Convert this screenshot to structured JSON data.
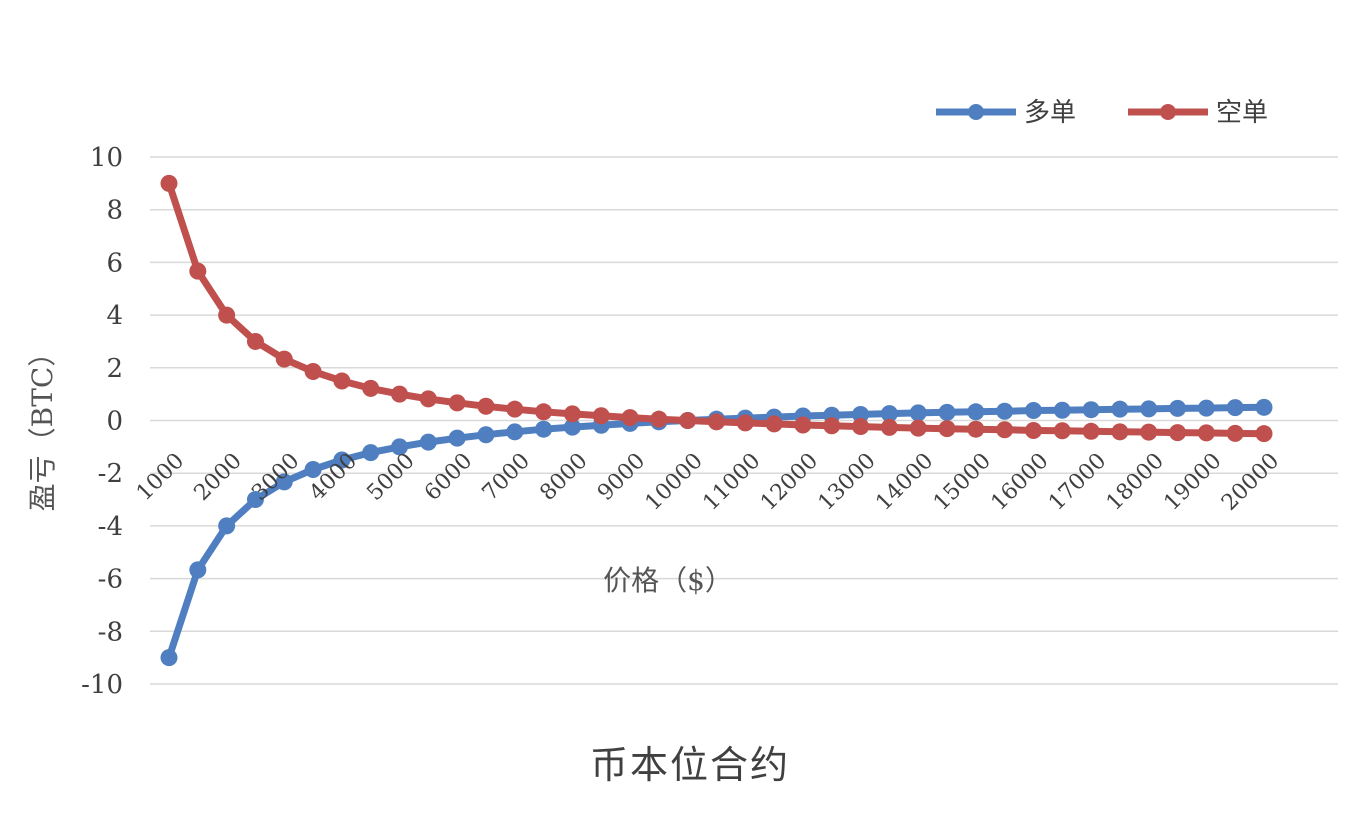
{
  "chart_data": {
    "type": "line",
    "title": "币本位合约",
    "xlabel": "价格（$）",
    "ylabel": "盈亏（BTC）",
    "ylim": [
      -10,
      10
    ],
    "yticks": [
      -10,
      -8,
      -6,
      -4,
      -2,
      0,
      2,
      4,
      6,
      8,
      10
    ],
    "grid": true,
    "legend_position": "top-right",
    "x": [
      1000,
      1500,
      2000,
      2500,
      3000,
      3500,
      4000,
      4500,
      5000,
      5500,
      6000,
      6500,
      7000,
      7500,
      8000,
      8500,
      9000,
      9500,
      10000,
      10500,
      11000,
      11500,
      12000,
      12500,
      13000,
      13500,
      14000,
      14500,
      15000,
      15500,
      16000,
      16500,
      17000,
      17500,
      18000,
      18500,
      19000,
      19500,
      20000
    ],
    "x_tick_labels": [
      "1000",
      "2000",
      "3000",
      "4000",
      "5000",
      "6000",
      "7000",
      "8000",
      "9000",
      "10000",
      "11000",
      "12000",
      "13000",
      "14000",
      "15000",
      "16000",
      "17000",
      "18000",
      "19000",
      "20000"
    ],
    "series": [
      {
        "name": "多单",
        "color": "#4f7fc0",
        "values": [
          -9.0,
          -5.67,
          -4.0,
          -3.0,
          -2.33,
          -1.86,
          -1.5,
          -1.22,
          -1.0,
          -0.82,
          -0.67,
          -0.54,
          -0.43,
          -0.33,
          -0.25,
          -0.18,
          -0.11,
          -0.05,
          0.0,
          0.05,
          0.09,
          0.13,
          0.17,
          0.2,
          0.23,
          0.26,
          0.29,
          0.31,
          0.33,
          0.35,
          0.38,
          0.39,
          0.41,
          0.43,
          0.44,
          0.46,
          0.47,
          0.49,
          0.5
        ]
      },
      {
        "name": "空单",
        "color": "#c0504d",
        "values": [
          9.0,
          5.67,
          4.0,
          3.0,
          2.33,
          1.86,
          1.5,
          1.22,
          1.0,
          0.82,
          0.67,
          0.54,
          0.43,
          0.33,
          0.25,
          0.18,
          0.11,
          0.05,
          0.0,
          -0.05,
          -0.09,
          -0.13,
          -0.17,
          -0.2,
          -0.23,
          -0.26,
          -0.29,
          -0.31,
          -0.33,
          -0.35,
          -0.38,
          -0.39,
          -0.41,
          -0.43,
          -0.44,
          -0.46,
          -0.47,
          -0.49,
          -0.5
        ]
      }
    ]
  }
}
